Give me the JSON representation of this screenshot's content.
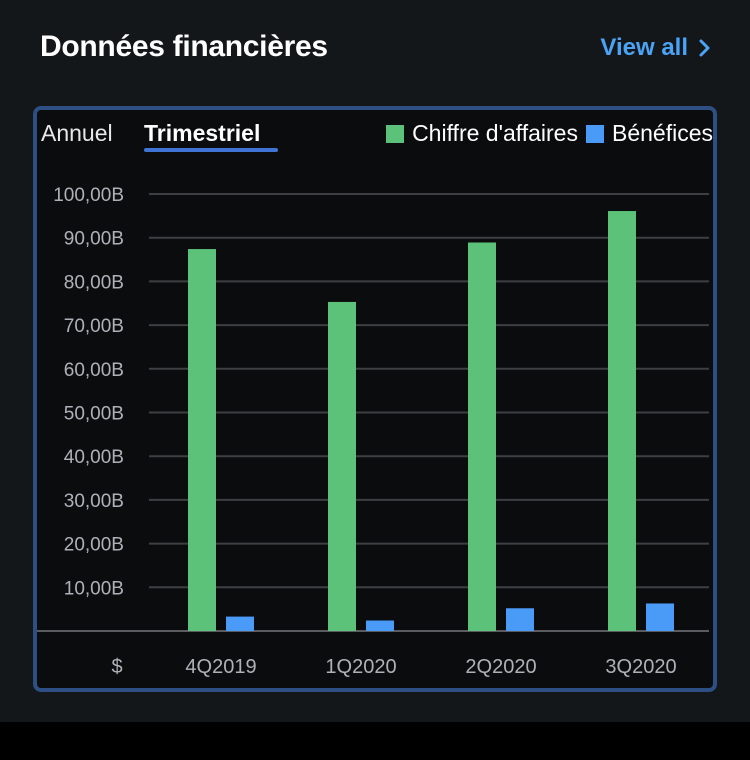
{
  "header": {
    "title": "Données financières",
    "view_all": "View all"
  },
  "tabs": [
    {
      "label": "Annuel",
      "active": false
    },
    {
      "label": "Trimestriel",
      "active": true
    }
  ],
  "colors": {
    "revenue": "#5cc27a",
    "earnings": "#4a9bf7",
    "accent": "#4aa3f5"
  },
  "chart_data": {
    "type": "bar",
    "categories": [
      "4Q2019",
      "1Q2020",
      "2Q2020",
      "3Q2020"
    ],
    "series": [
      {
        "name": "Chiffre d'affaires",
        "values": [
          87.4,
          75.3,
          88.9,
          96.1
        ]
      },
      {
        "name": "Bénéfices",
        "values": [
          3.3,
          2.4,
          5.2,
          6.3
        ]
      }
    ],
    "ylim": [
      0,
      100
    ],
    "yticks": [
      10,
      20,
      30,
      40,
      50,
      60,
      70,
      80,
      90,
      100
    ],
    "ytick_labels": [
      "10,00B",
      "20,00B",
      "30,00B",
      "40,00B",
      "50,00B",
      "60,00B",
      "70,00B",
      "80,00B",
      "90,00B",
      "100,00B"
    ],
    "axis_unit_label": "$",
    "grid": true,
    "legend": "top-right"
  }
}
